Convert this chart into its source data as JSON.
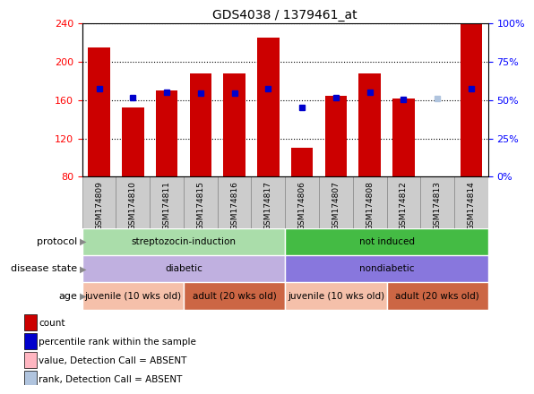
{
  "title": "GDS4038 / 1379461_at",
  "samples": [
    "GSM174809",
    "GSM174810",
    "GSM174811",
    "GSM174815",
    "GSM174816",
    "GSM174817",
    "GSM174806",
    "GSM174807",
    "GSM174808",
    "GSM174812",
    "GSM174813",
    "GSM174814"
  ],
  "count_values": [
    215,
    152,
    170,
    188,
    188,
    225,
    110,
    165,
    188,
    162,
    80,
    240
  ],
  "percentile_values": [
    172,
    163,
    168,
    167,
    167,
    172,
    152,
    163,
    168,
    161,
    162,
    172
  ],
  "absent_mask": [
    false,
    false,
    false,
    false,
    false,
    false,
    false,
    false,
    false,
    false,
    true,
    false
  ],
  "ymin": 80,
  "ymax": 240,
  "yticks": [
    80,
    120,
    160,
    200,
    240
  ],
  "y2ticks_labels": [
    "0%",
    "25%",
    "50%",
    "75%",
    "100%"
  ],
  "bar_color_normal": "#cc0000",
  "bar_color_absent": "#ffb6c1",
  "percentile_color_normal": "#0000cc",
  "percentile_color_absent": "#b0c4de",
  "bar_width": 0.65,
  "protocol_groups": [
    {
      "label": "streptozocin-induction",
      "start": 0,
      "end": 6,
      "color": "#aaddaa"
    },
    {
      "label": "not induced",
      "start": 6,
      "end": 12,
      "color": "#44bb44"
    }
  ],
  "disease_groups": [
    {
      "label": "diabetic",
      "start": 0,
      "end": 6,
      "color": "#c0b0e0"
    },
    {
      "label": "nondiabetic",
      "start": 6,
      "end": 12,
      "color": "#8877dd"
    }
  ],
  "age_groups": [
    {
      "label": "juvenile (10 wks old)",
      "start": 0,
      "end": 3,
      "color": "#f5c0aa"
    },
    {
      "label": "adult (20 wks old)",
      "start": 3,
      "end": 6,
      "color": "#cc6644"
    },
    {
      "label": "juvenile (10 wks old)",
      "start": 6,
      "end": 9,
      "color": "#f5c0aa"
    },
    {
      "label": "adult (20 wks old)",
      "start": 9,
      "end": 12,
      "color": "#cc6644"
    }
  ],
  "row_labels": [
    "protocol",
    "disease state",
    "age"
  ],
  "legend_items": [
    {
      "color": "#cc0000",
      "label": "count"
    },
    {
      "color": "#0000cc",
      "label": "percentile rank within the sample"
    },
    {
      "color": "#ffb6c1",
      "label": "value, Detection Call = ABSENT"
    },
    {
      "color": "#b0c4de",
      "label": "rank, Detection Call = ABSENT"
    }
  ],
  "sample_box_color": "#cccccc",
  "sample_box_edge": "#888888"
}
